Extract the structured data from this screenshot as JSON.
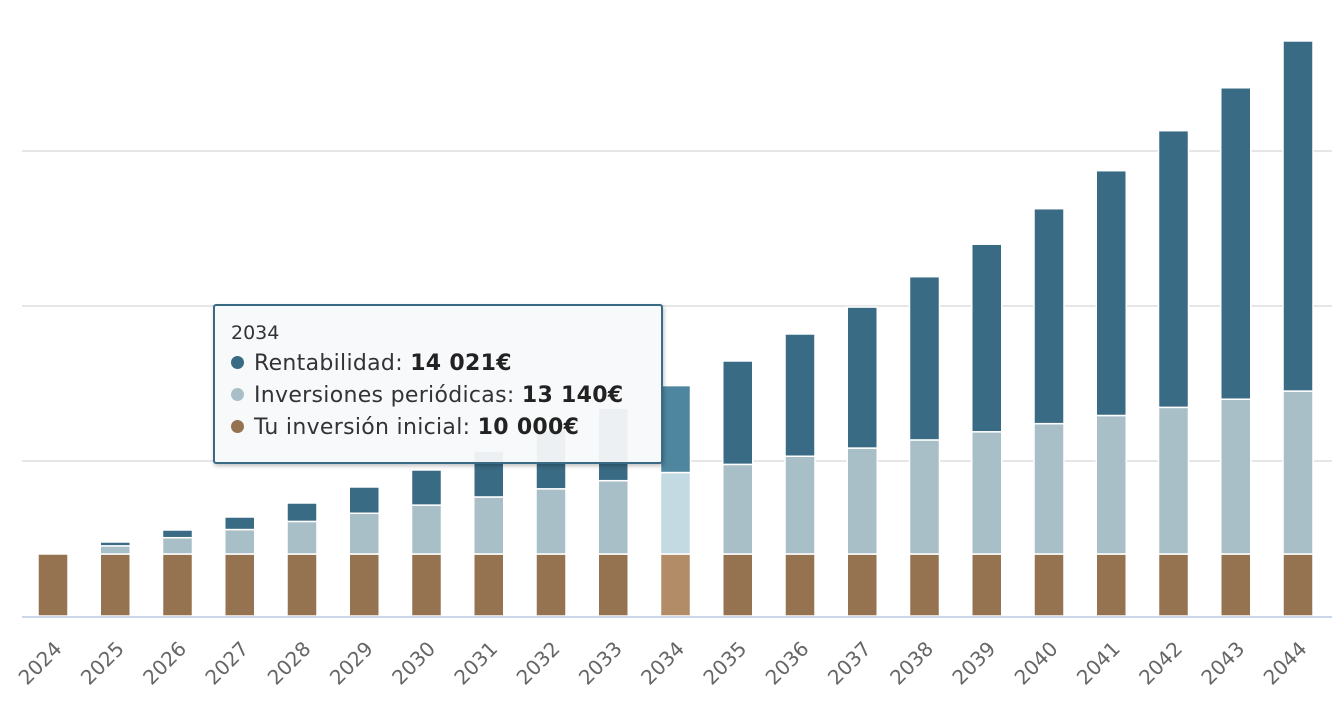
{
  "chart_data": {
    "type": "bar",
    "stacked": true,
    "title": "",
    "xlabel": "",
    "ylabel": "",
    "ylim": [
      0,
      93000
    ],
    "grid": true,
    "gridlines": [
      25000,
      50000,
      75000
    ],
    "categories": [
      "2024",
      "2025",
      "2026",
      "2027",
      "2028",
      "2029",
      "2030",
      "2031",
      "2032",
      "2033",
      "2034",
      "2035",
      "2036",
      "2037",
      "2038",
      "2039",
      "2040",
      "2041",
      "2042",
      "2043",
      "2044"
    ],
    "series": [
      {
        "name": "Tu inversión inicial",
        "color": "#957350",
        "hover_color": "#b18c66",
        "values": [
          10000,
          10000,
          10000,
          10000,
          10000,
          10000,
          10000,
          10000,
          10000,
          10000,
          10000,
          10000,
          10000,
          10000,
          10000,
          10000,
          10000,
          10000,
          10000,
          10000,
          10000
        ]
      },
      {
        "name": "Inversiones periódicas",
        "color": "#a9bfc8",
        "hover_color": "#c3dae2",
        "values": [
          0,
          1314,
          2628,
          3942,
          5256,
          6570,
          7884,
          9198,
          10512,
          11826,
          13140,
          14454,
          15768,
          17082,
          18396,
          19710,
          21024,
          22338,
          23652,
          24966,
          26280
        ]
      },
      {
        "name": "Rentabilidad",
        "color": "#3a6b84",
        "hover_color": "#4e86a0",
        "values": [
          0,
          622,
          1244,
          2027,
          2971,
          4238,
          5666,
          7417,
          9490,
          11724,
          14021,
          16678,
          19719,
          22744,
          26330,
          30255,
          34670,
          39486,
          44624,
          50232,
          56468
        ]
      }
    ],
    "hovered_category": "2034",
    "legend": "none"
  },
  "tooltip": {
    "title": "2034",
    "rows": [
      {
        "label": "Rentabilidad: ",
        "value": "14 021€",
        "color": "#3a6b84"
      },
      {
        "label": "Inversiones periódicas: ",
        "value": "13 140€",
        "color": "#a9bfc8"
      },
      {
        "label": "Tu inversión inicial: ",
        "value": "10 000€",
        "color": "#957350"
      }
    ]
  }
}
